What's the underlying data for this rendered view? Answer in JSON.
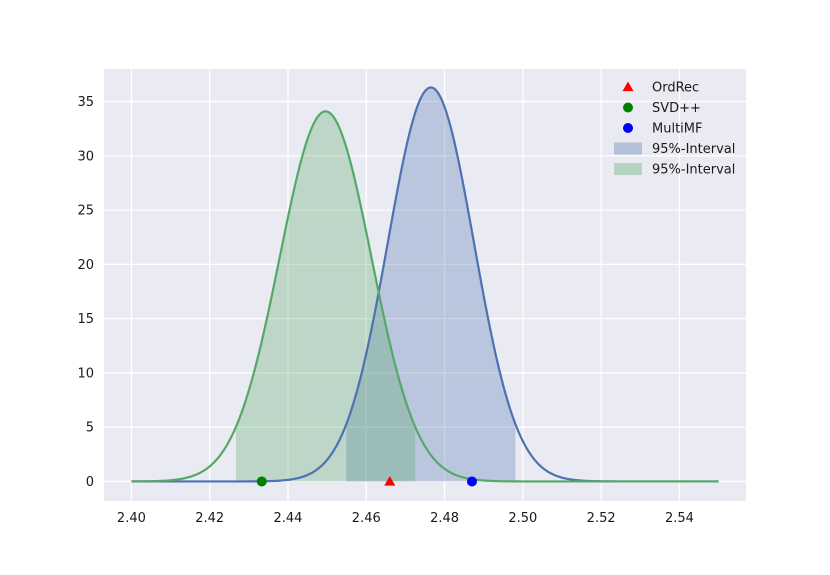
{
  "chart_data": {
    "type": "line",
    "title": "",
    "xlabel": "",
    "ylabel": "",
    "xlim": [
      2.393,
      2.557
    ],
    "ylim": [
      -1.8,
      38.0
    ],
    "x_ticks": [
      "2.40",
      "2.42",
      "2.44",
      "2.46",
      "2.48",
      "2.50",
      "2.52",
      "2.54"
    ],
    "y_ticks": [
      "0",
      "5",
      "10",
      "15",
      "20",
      "25",
      "30",
      "35"
    ],
    "grid": true,
    "background": "#eaeaf2",
    "legend_position": "top-right",
    "series": [
      {
        "kind": "density",
        "mean": 2.4765,
        "std": 0.011,
        "peak": 36.3,
        "x_range": [
          2.4,
          2.55
        ],
        "interval": [
          2.4549,
          2.4981
        ],
        "line_color": "#4c72b0",
        "fill_color": "#4c72b0"
      },
      {
        "kind": "density",
        "mean": 2.4496,
        "std": 0.0117,
        "peak": 34.1,
        "x_range": [
          2.4,
          2.55
        ],
        "interval": [
          2.4267,
          2.4725
        ],
        "line_color": "#55a868",
        "fill_color": "#55a868"
      }
    ],
    "points": [
      {
        "name": "OrdRec",
        "x": 2.466,
        "y": 0,
        "marker": "triangle",
        "color": "#ff0000"
      },
      {
        "name": "SVD++",
        "x": 2.4333,
        "y": 0,
        "marker": "circle",
        "color": "#008000"
      },
      {
        "name": "MultiMF",
        "x": 2.487,
        "y": 0,
        "marker": "circle",
        "color": "#0000ff"
      }
    ],
    "legend": [
      {
        "label": "OrdRec",
        "marker": "triangle",
        "color": "#ff0000"
      },
      {
        "label": "SVD++",
        "marker": "circle",
        "color": "#008000"
      },
      {
        "label": "MultiMF",
        "marker": "circle",
        "color": "#0000ff"
      },
      {
        "label": "95%-Interval",
        "marker": "patch",
        "color": "#4c72b0"
      },
      {
        "label": "95%-Interval",
        "marker": "patch",
        "color": "#55a868"
      }
    ]
  }
}
